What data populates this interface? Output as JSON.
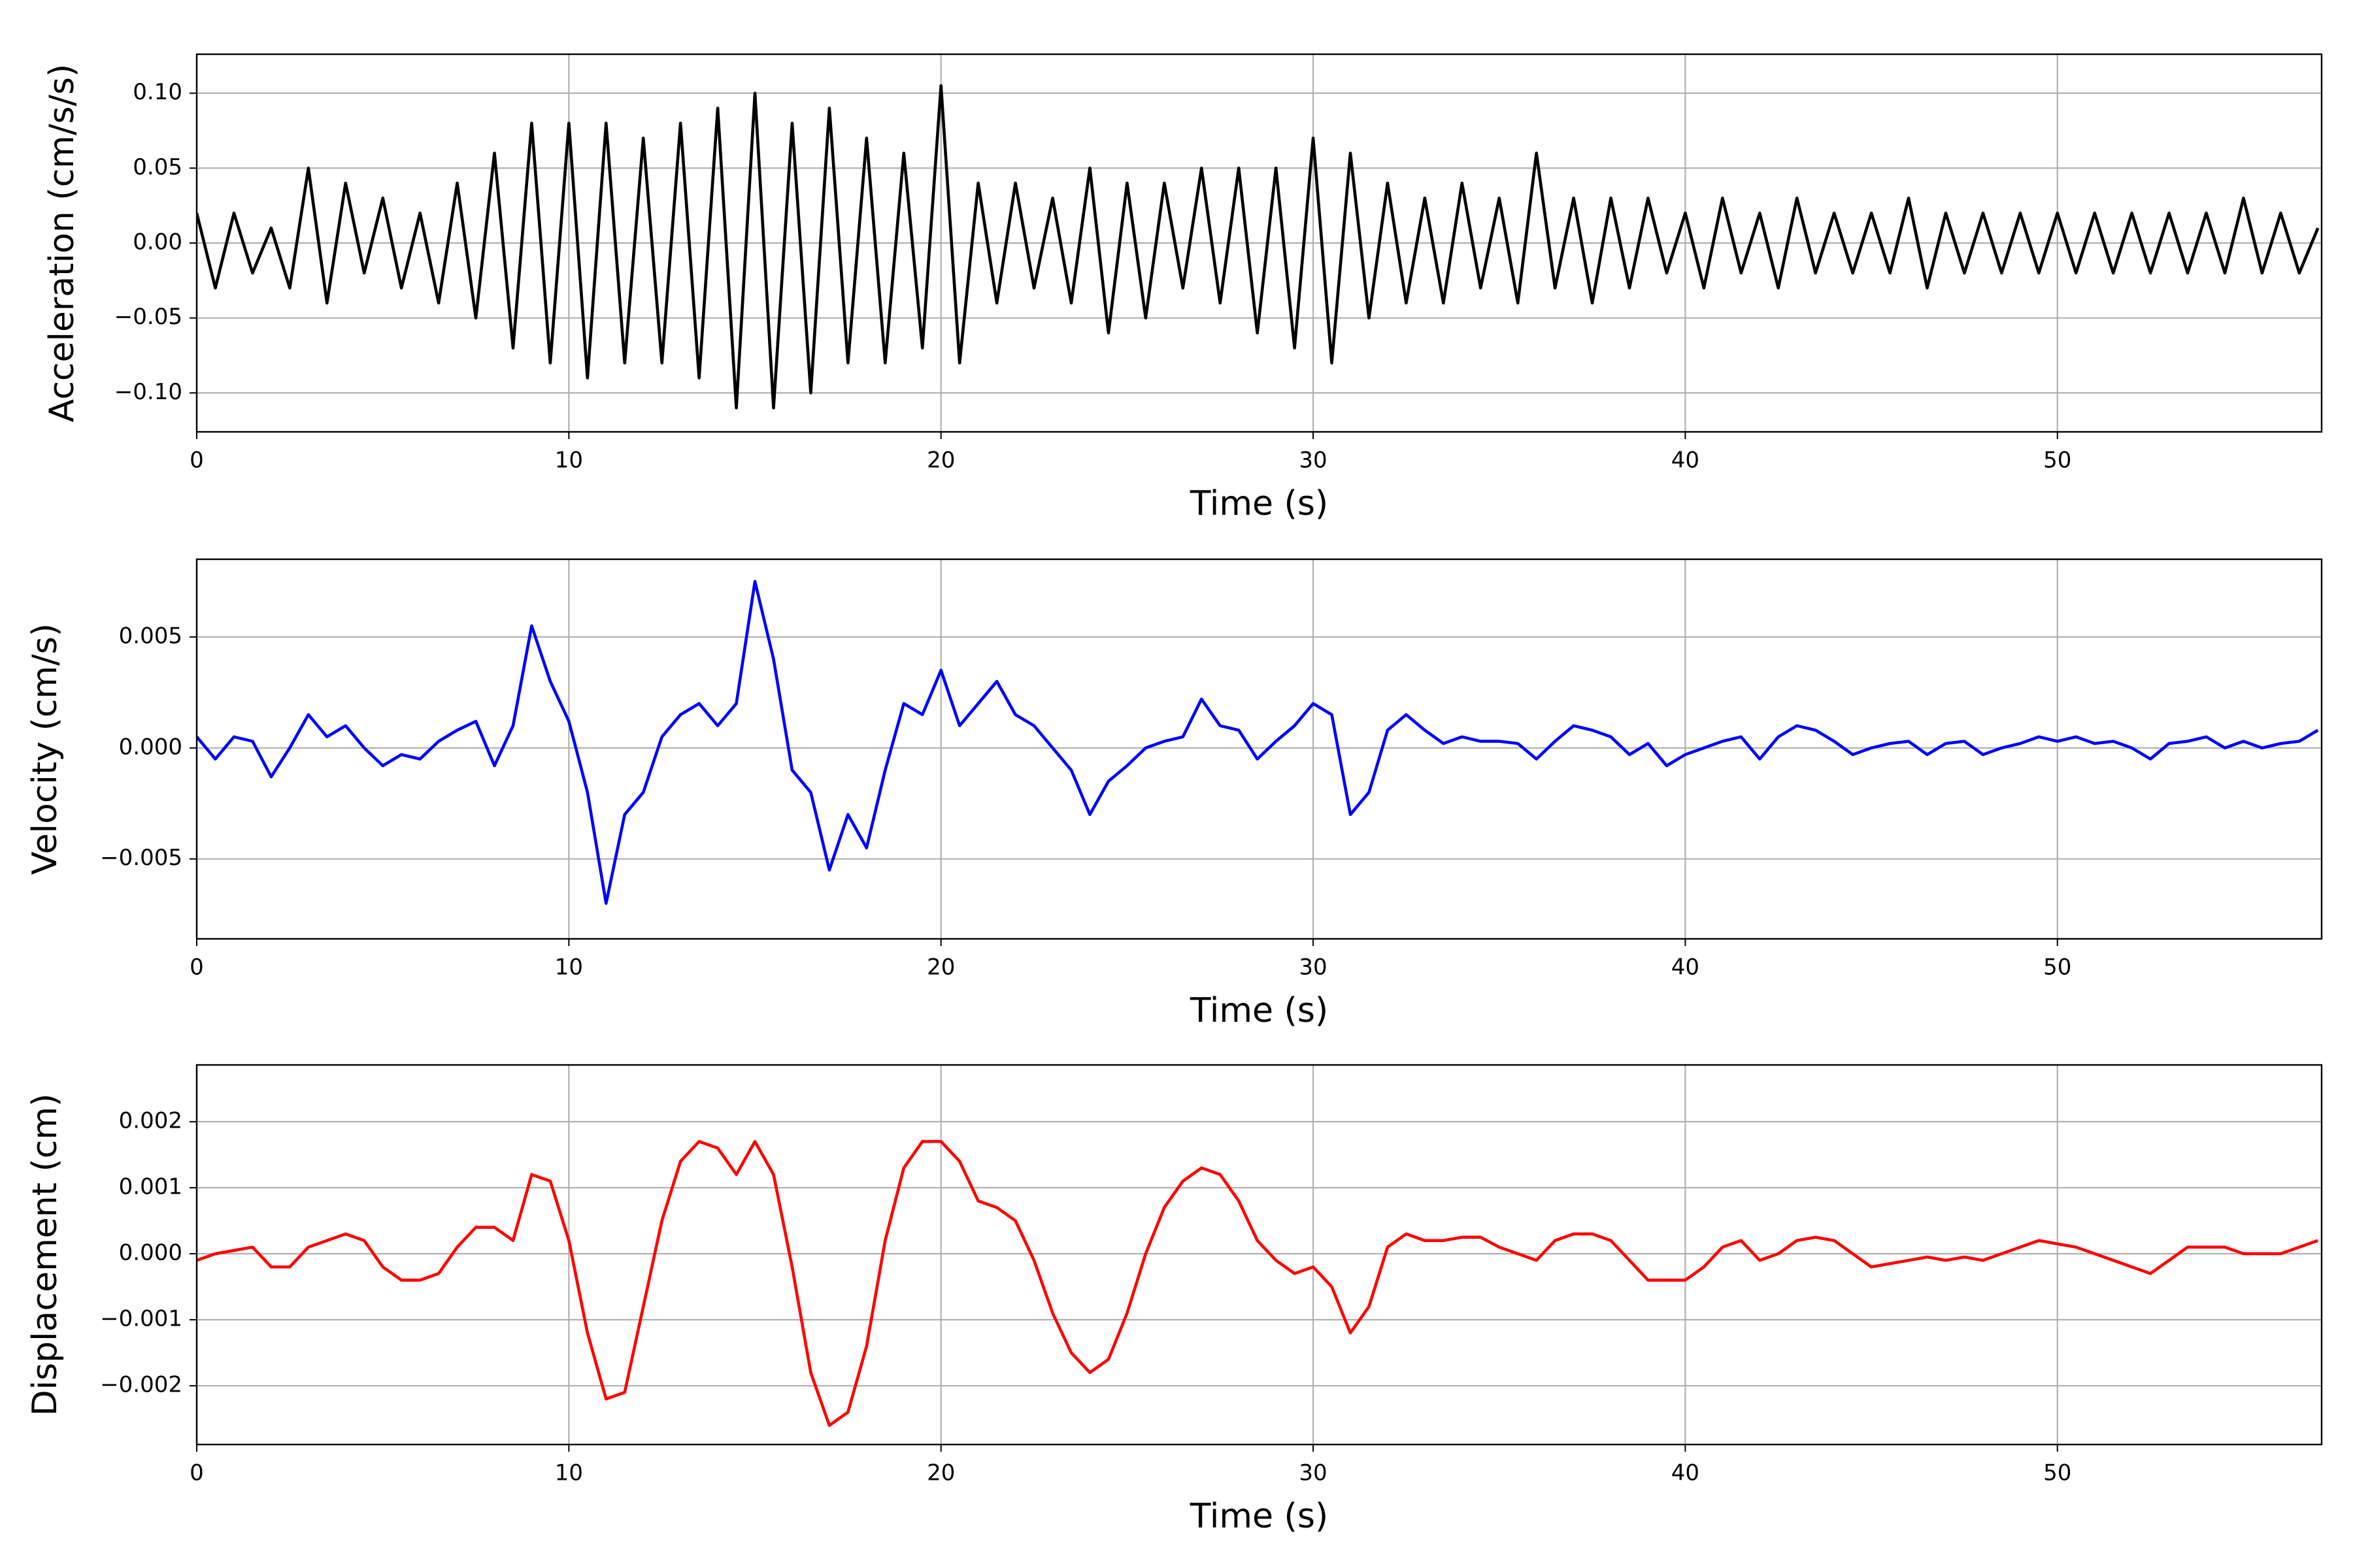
{
  "chart_data": [
    {
      "type": "line",
      "ylabel": "Acceleration (cm/s/s)",
      "xlabel": "Time (s)",
      "color": "#000000",
      "grid": true,
      "xlim": [
        0,
        57.1
      ],
      "xticks": [
        0,
        10,
        20,
        30,
        40,
        50
      ],
      "ylim": [
        -0.126,
        0.126
      ],
      "yticks": [
        {
          "value": -0.1,
          "label": "−0.10"
        },
        {
          "value": -0.05,
          "label": "−0.05"
        },
        {
          "value": 0,
          "label": "0.00"
        },
        {
          "value": 0.05,
          "label": "0.05"
        },
        {
          "value": 0.1,
          "label": "0.10"
        }
      ],
      "x": [
        0,
        0.5,
        1,
        1.5,
        2,
        2.5,
        3,
        3.5,
        4,
        4.5,
        5,
        5.5,
        6,
        6.5,
        7,
        7.5,
        8,
        8.5,
        9,
        9.5,
        10,
        10.5,
        11,
        11.5,
        12,
        12.5,
        13,
        13.5,
        14,
        14.5,
        15,
        15.5,
        16,
        16.5,
        17,
        17.5,
        18,
        18.5,
        19,
        19.5,
        20,
        20.5,
        21,
        21.5,
        22,
        22.5,
        23,
        23.5,
        24,
        24.5,
        25,
        25.5,
        26,
        26.5,
        27,
        27.5,
        28,
        28.5,
        29,
        29.5,
        30,
        30.5,
        31,
        31.5,
        32,
        32.5,
        33,
        33.5,
        34,
        34.5,
        35,
        35.5,
        36,
        36.5,
        37,
        37.5,
        38,
        38.5,
        39,
        39.5,
        40,
        40.5,
        41,
        41.5,
        42,
        42.5,
        43,
        43.5,
        44,
        44.5,
        45,
        45.5,
        46,
        46.5,
        47,
        47.5,
        48,
        48.5,
        49,
        49.5,
        50,
        50.5,
        51,
        51.5,
        52,
        52.5,
        53,
        53.5,
        54,
        54.5,
        55,
        55.5,
        56,
        56.5,
        57
      ],
      "values": [
        0.02,
        -0.03,
        0.02,
        -0.02,
        0.01,
        -0.03,
        0.05,
        -0.04,
        0.04,
        -0.02,
        0.03,
        -0.03,
        0.02,
        -0.04,
        0.04,
        -0.05,
        0.06,
        -0.07,
        0.08,
        -0.08,
        0.08,
        -0.09,
        0.08,
        -0.08,
        0.07,
        -0.08,
        0.08,
        -0.09,
        0.09,
        -0.11,
        0.1,
        -0.11,
        0.08,
        -0.1,
        0.09,
        -0.08,
        0.07,
        -0.08,
        0.06,
        -0.07,
        0.105,
        -0.08,
        0.04,
        -0.04,
        0.04,
        -0.03,
        0.03,
        -0.04,
        0.05,
        -0.06,
        0.04,
        -0.05,
        0.04,
        -0.03,
        0.05,
        -0.04,
        0.05,
        -0.06,
        0.05,
        -0.07,
        0.07,
        -0.08,
        0.06,
        -0.05,
        0.04,
        -0.04,
        0.03,
        -0.04,
        0.04,
        -0.03,
        0.03,
        -0.04,
        0.06,
        -0.03,
        0.03,
        -0.04,
        0.03,
        -0.03,
        0.03,
        -0.02,
        0.02,
        -0.03,
        0.03,
        -0.02,
        0.02,
        -0.03,
        0.03,
        -0.02,
        0.02,
        -0.02,
        0.02,
        -0.02,
        0.03,
        -0.03,
        0.02,
        -0.02,
        0.02,
        -0.02,
        0.02,
        -0.02,
        0.02,
        -0.02,
        0.02,
        -0.02,
        0.02,
        -0.02,
        0.02,
        -0.02,
        0.02,
        -0.02,
        0.03,
        -0.02,
        0.02,
        -0.02,
        0.01
      ]
    },
    {
      "type": "line",
      "ylabel": "Velocity (cm/s)",
      "xlabel": "Time (s)",
      "color": "#0000ff",
      "grid": true,
      "xlim": [
        0,
        57.1
      ],
      "xticks": [
        0,
        10,
        20,
        30,
        40,
        50
      ],
      "ylim": [
        -0.0086,
        0.0085
      ],
      "yticks": [
        {
          "value": -0.005,
          "label": "−0.005"
        },
        {
          "value": 0,
          "label": "0.000"
        },
        0.005
      ],
      "x": [
        0,
        0.5,
        1,
        1.5,
        2,
        2.5,
        3,
        3.5,
        4,
        4.5,
        5,
        5.5,
        6,
        6.5,
        7,
        7.5,
        8,
        8.5,
        9,
        9.5,
        10,
        10.5,
        11,
        11.5,
        12,
        12.5,
        13,
        13.5,
        14,
        14.5,
        15,
        15.5,
        16,
        16.5,
        17,
        17.5,
        18,
        18.5,
        19,
        19.5,
        20,
        20.5,
        21,
        21.5,
        22,
        22.5,
        23,
        23.5,
        24,
        24.5,
        25,
        25.5,
        26,
        26.5,
        27,
        27.5,
        28,
        28.5,
        29,
        29.5,
        30,
        30.5,
        31,
        31.5,
        32,
        32.5,
        33,
        33.5,
        34,
        34.5,
        35,
        35.5,
        36,
        36.5,
        37,
        37.5,
        38,
        38.5,
        39,
        39.5,
        40,
        40.5,
        41,
        41.5,
        42,
        42.5,
        43,
        43.5,
        44,
        44.5,
        45,
        45.5,
        46,
        46.5,
        47,
        47.5,
        48,
        48.5,
        49,
        49.5,
        50,
        50.5,
        51,
        51.5,
        52,
        52.5,
        53,
        53.5,
        54,
        54.5,
        55,
        55.5,
        56,
        56.5,
        57
      ],
      "values": [
        0.0005,
        -0.0005,
        0.0005,
        0.0003,
        -0.0013,
        0.0,
        0.0015,
        0.0005,
        0.001,
        0.0,
        -0.0008,
        -0.0003,
        -0.0005,
        0.0003,
        0.0008,
        0.0012,
        -0.0008,
        0.001,
        0.0055,
        0.003,
        0.0012,
        -0.002,
        -0.007,
        -0.003,
        -0.002,
        0.0005,
        0.0015,
        0.002,
        0.001,
        0.002,
        0.0075,
        0.004,
        -0.001,
        -0.002,
        -0.0055,
        -0.003,
        -0.0045,
        -0.001,
        0.002,
        0.0015,
        0.0035,
        0.001,
        0.002,
        0.003,
        0.0015,
        0.001,
        0.0,
        -0.001,
        -0.003,
        -0.0015,
        -0.0008,
        0.0,
        0.0003,
        0.0005,
        0.0022,
        0.001,
        0.0008,
        -0.0005,
        0.0003,
        0.001,
        0.002,
        0.0015,
        -0.003,
        -0.002,
        0.0008,
        0.0015,
        0.0008,
        0.0002,
        0.0005,
        0.0003,
        0.0003,
        0.0002,
        -0.0005,
        0.0003,
        0.001,
        0.0008,
        0.0005,
        -0.0003,
        0.0002,
        -0.0008,
        -0.0003,
        0.0,
        0.0003,
        0.0005,
        -0.0005,
        0.0005,
        0.001,
        0.0008,
        0.0003,
        -0.0003,
        0.0,
        0.0002,
        0.0003,
        -0.0003,
        0.0002,
        0.0003,
        -0.0003,
        0.0,
        0.0002,
        0.0005,
        0.0003,
        0.0005,
        0.0002,
        0.0003,
        0.0,
        -0.0005,
        0.0002,
        0.0003,
        0.0005,
        0.0,
        0.0003,
        0.0,
        0.0002,
        0.0003,
        0.0008
      ]
    },
    {
      "type": "line",
      "ylabel": "Displacement (cm)",
      "xlabel": "Time (s)",
      "color": "#ff0000",
      "grid": true,
      "xlim": [
        0,
        57.1
      ],
      "xticks": [
        0,
        10,
        20,
        30,
        40,
        50
      ],
      "ylim": [
        -0.00289,
        0.00286
      ],
      "yticks": [
        {
          "value": -0.002,
          "label": "−0.002"
        },
        {
          "value": -0.001,
          "label": "−0.001"
        },
        {
          "value": 0,
          "label": "0.000"
        },
        0.001,
        0.002
      ],
      "x": [
        0,
        0.5,
        1,
        1.5,
        2,
        2.5,
        3,
        3.5,
        4,
        4.5,
        5,
        5.5,
        6,
        6.5,
        7,
        7.5,
        8,
        8.5,
        9,
        9.5,
        10,
        10.5,
        11,
        11.5,
        12,
        12.5,
        13,
        13.5,
        14,
        14.5,
        15,
        15.5,
        16,
        16.5,
        17,
        17.5,
        18,
        18.5,
        19,
        19.5,
        20,
        20.5,
        21,
        21.5,
        22,
        22.5,
        23,
        23.5,
        24,
        24.5,
        25,
        25.5,
        26,
        26.5,
        27,
        27.5,
        28,
        28.5,
        29,
        29.5,
        30,
        30.5,
        31,
        31.5,
        32,
        32.5,
        33,
        33.5,
        34,
        34.5,
        35,
        35.5,
        36,
        36.5,
        37,
        37.5,
        38,
        38.5,
        39,
        39.5,
        40,
        40.5,
        41,
        41.5,
        42,
        42.5,
        43,
        43.5,
        44,
        44.5,
        45,
        45.5,
        46,
        46.5,
        47,
        47.5,
        48,
        48.5,
        49,
        49.5,
        50,
        50.5,
        51,
        51.5,
        52,
        52.5,
        53,
        53.5,
        54,
        54.5,
        55,
        55.5,
        56,
        56.5,
        57
      ],
      "values": [
        -0.0001,
        0.0,
        5e-05,
        0.0001,
        -0.0002,
        -0.0002,
        0.0001,
        0.0002,
        0.0003,
        0.0002,
        -0.0002,
        -0.0004,
        -0.0004,
        -0.0003,
        0.0001,
        0.0004,
        0.0004,
        0.0002,
        0.0012,
        0.0011,
        0.0002,
        -0.0012,
        -0.0022,
        -0.0021,
        -0.0008,
        0.0005,
        0.0014,
        0.0017,
        0.0016,
        0.0012,
        0.0017,
        0.0012,
        -0.0002,
        -0.0018,
        -0.0026,
        -0.0024,
        -0.0014,
        0.0002,
        0.0013,
        0.0017,
        0.0017,
        0.0014,
        0.0008,
        0.0007,
        0.0005,
        -0.0001,
        -0.0009,
        -0.0015,
        -0.0018,
        -0.0016,
        -0.0009,
        0.0,
        0.0007,
        0.0011,
        0.0013,
        0.0012,
        0.0008,
        0.0002,
        -0.0001,
        -0.0003,
        -0.0002,
        -0.0005,
        -0.0012,
        -0.0008,
        0.0001,
        0.0003,
        0.0002,
        0.0002,
        0.00025,
        0.00025,
        0.0001,
        0.0,
        -0.0001,
        0.0002,
        0.0003,
        0.0003,
        0.0002,
        -0.0001,
        -0.0004,
        -0.0004,
        -0.0004,
        -0.0002,
        0.0001,
        0.0002,
        -0.0001,
        0.0,
        0.0002,
        0.00025,
        0.0002,
        0.0,
        -0.0002,
        -0.00015,
        -0.0001,
        -5e-05,
        -0.0001,
        -5e-05,
        -0.0001,
        0.0,
        0.0001,
        0.0002,
        0.00015,
        0.0001,
        0.0,
        -0.0001,
        -0.0002,
        -0.0003,
        -0.0001,
        0.0001,
        0.0001,
        0.0001,
        0.0,
        0.0,
        0.0,
        0.0001,
        0.0002
      ]
    }
  ]
}
